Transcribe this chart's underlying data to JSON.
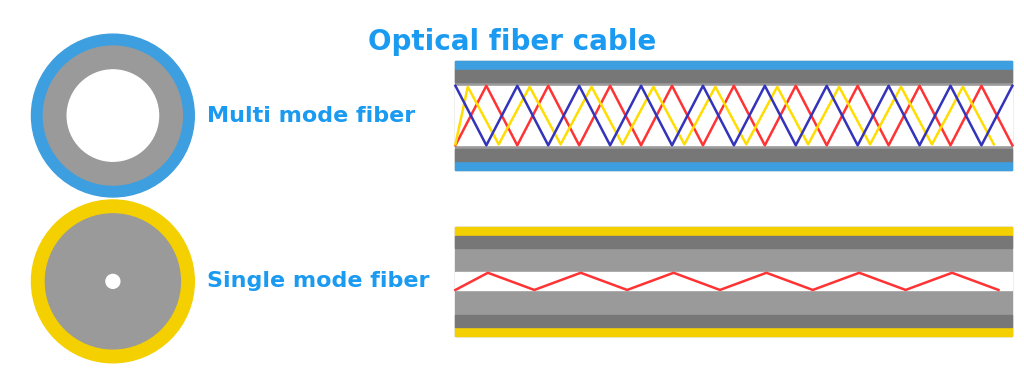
{
  "title": "Optical fiber cable",
  "title_color": "#1a9af0",
  "title_fontsize": 20,
  "label_mmf": "Multi mode fiber",
  "label_smf": "Single mode fiber",
  "label_color": "#1a9af0",
  "label_fontsize": 16,
  "bg_color": "#ffffff",
  "gray_cladding": "#9a9a9a",
  "white_core": "#ffffff",
  "blue_coat": "#3d9fe0",
  "yellow_coat": "#f5d000",
  "dark_gray": "#777777",
  "mmf_ray_colors": [
    "#ff3333",
    "#ffdd00",
    "#3333bb"
  ],
  "smf_ray_color": "#ff3333",
  "fig_width": 10.24,
  "fig_height": 3.87,
  "dpi": 100
}
